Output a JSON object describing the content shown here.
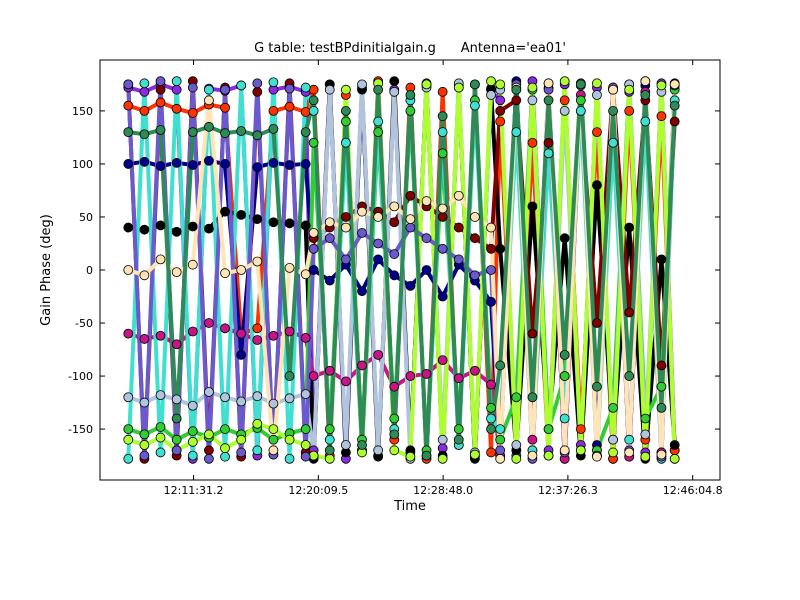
{
  "chart_data": {
    "type": "line",
    "title": "G table: testBPdinitialgain.g      Antenna='ea01'",
    "x_label": "Time",
    "y_label": "Gain Phase (deg)",
    "xlim": [
      43502.5,
      46078.2
    ],
    "ylim": [
      -198,
      198
    ],
    "xticks": [
      {
        "value": 43891.2,
        "label": "12:11:31.2"
      },
      {
        "value": 44409.5,
        "label": "12:20:09.5"
      },
      {
        "value": 44928.0,
        "label": "12:28:48.0"
      },
      {
        "value": 45446.3,
        "label": "12:37:26.3"
      },
      {
        "value": 45964.8,
        "label": "12:46:04.8"
      }
    ],
    "yticks": [
      -150,
      -100,
      -50,
      0,
      50,
      100,
      150
    ],
    "grid": false,
    "x": [
      43620,
      43687,
      43754,
      43821,
      43888,
      43955,
      44022,
      44089,
      44156,
      44223,
      44290,
      44357,
      44390,
      44457,
      44524,
      44591,
      44658,
      44725,
      44792,
      44859,
      44926,
      44993,
      45060,
      45127,
      45165,
      45232,
      45299,
      45366,
      45433,
      45500,
      45567,
      45634,
      45701,
      45768,
      45835,
      45890
    ],
    "series": [
      {
        "color": "#8a2be2",
        "values": [
          172,
          168,
          175,
          170,
          -178,
          171,
          169,
          174,
          -175,
          170,
          173,
          168,
          -170,
          175,
          -178,
          172,
          -175,
          170,
          -172,
          176,
          -168,
          174,
          -176,
          171,
          160,
          -175,
          178,
          -170,
          175,
          -165,
          172,
          -178,
          168,
          -172,
          176,
          -170
        ]
      },
      {
        "color": "#ff3300",
        "values": [
          155,
          150,
          158,
          152,
          148,
          156,
          153,
          -60,
          -55,
          150,
          154,
          149,
          170,
          -175,
          165,
          -170,
          178,
          -160,
          172,
          -178,
          168,
          -165,
          175,
          -172,
          140,
          -170,
          120,
          -175,
          160,
          -150,
          130,
          -178,
          150,
          -160,
          145,
          -170
        ]
      },
      {
        "color": "#00008b",
        "values": [
          100,
          102,
          98,
          101,
          99,
          103,
          100,
          -80,
          97,
          101,
          99,
          100,
          0,
          -10,
          5,
          -20,
          10,
          -5,
          -15,
          0,
          -25,
          5,
          -10,
          -30,
          -175,
          178,
          -170,
          172,
          -178,
          175,
          -165,
          170,
          -176,
          174,
          -172,
          176
        ]
      },
      {
        "color": "#000000",
        "values": [
          40,
          38,
          42,
          36,
          41,
          39,
          55,
          52,
          48,
          45,
          44,
          42,
          -178,
          175,
          -172,
          170,
          -176,
          178,
          -170,
          174,
          -175,
          172,
          -178,
          170,
          20,
          -170,
          60,
          -150,
          30,
          -175,
          80,
          -160,
          40,
          -178,
          10,
          -165
        ]
      },
      {
        "color": "#c71585",
        "values": [
          -60,
          -65,
          -62,
          -70,
          -58,
          -50,
          -55,
          -60,
          -66,
          -62,
          -58,
          -64,
          -100,
          -95,
          -105,
          -90,
          -80,
          -110,
          -100,
          -98,
          -85,
          -102,
          -95,
          -108,
          -175,
          170,
          -160,
          176,
          -178,
          165,
          -170,
          172,
          -176,
          168,
          -172,
          174
        ]
      },
      {
        "color": "#800000",
        "values": [
          175,
          -178,
          170,
          -175,
          178,
          -170,
          172,
          -176,
          168,
          -174,
          176,
          -172,
          30,
          40,
          50,
          60,
          55,
          45,
          70,
          60,
          50,
          40,
          30,
          20,
          150,
          160,
          -60,
          120,
          -100,
          150,
          -50,
          170,
          -40,
          160,
          -90,
          140
        ]
      },
      {
        "color": "#32cd32",
        "values": [
          -150,
          -155,
          -148,
          -160,
          -152,
          -158,
          -150,
          -155,
          -149,
          -160,
          -154,
          -150,
          120,
          -150,
          140,
          -160,
          130,
          -140,
          150,
          -170,
          110,
          -150,
          160,
          -130,
          -160,
          -120,
          170,
          -150,
          -100,
          160,
          -170,
          -130,
          175,
          -140,
          -110,
          170
        ]
      },
      {
        "color": "#b0c4de",
        "values": [
          -120,
          -125,
          -118,
          -122,
          -128,
          -115,
          -120,
          -124,
          -119,
          -126,
          -121,
          -117,
          -175,
          170,
          -165,
          175,
          -170,
          168,
          -178,
          172,
          -160,
          176,
          -172,
          165,
          170,
          -165,
          160,
          -175,
          150,
          -170,
          165,
          -160,
          175,
          -155,
          168,
          -178
        ]
      },
      {
        "color": "#40e0d0",
        "values": [
          -178,
          176,
          -172,
          178,
          -175,
          170,
          -176,
          174,
          -170,
          177,
          -178,
          172,
          150,
          -160,
          120,
          -170,
          140,
          -150,
          160,
          -175,
          130,
          -165,
          155,
          -140,
          -150,
          130,
          -170,
          110,
          -140,
          150,
          -175,
          120,
          -160,
          140,
          -178,
          160
        ]
      },
      {
        "color": "#adff2f",
        "values": [
          -160,
          -165,
          -158,
          -170,
          -162,
          -155,
          -168,
          -160,
          -145,
          -150,
          -160,
          -165,
          -175,
          -178,
          170,
          -172,
          176,
          -170,
          -176,
          175,
          -178,
          172,
          -174,
          178,
          175,
          -178,
          172,
          -175,
          178,
          -170,
          176,
          -172,
          170,
          -176,
          174,
          -178
        ]
      },
      {
        "color": "#6a5acd",
        "values": [
          175,
          -175,
          178,
          -170,
          172,
          -178,
          170,
          -172,
          176,
          -174,
          171,
          -176,
          20,
          30,
          10,
          35,
          25,
          15,
          40,
          30,
          20,
          10,
          -5,
          0,
          -170,
          175,
          -178,
          170,
          -172,
          176,
          -175,
          172,
          -170,
          178,
          -176,
          174
        ]
      },
      {
        "color": "#ffe4b5",
        "values": [
          0,
          -5,
          10,
          -2,
          5,
          160,
          -3,
          0,
          8,
          -170,
          2,
          -4,
          35,
          45,
          40,
          55,
          50,
          60,
          48,
          65,
          58,
          70,
          50,
          40,
          -178,
          172,
          -175,
          176,
          -170,
          174,
          -176,
          170,
          -172,
          178,
          -174,
          175
        ]
      },
      {
        "color": "#2e8b57",
        "values": [
          130,
          128,
          132,
          -140,
          130,
          135,
          129,
          131,
          127,
          133,
          -100,
          130,
          160,
          -170,
          150,
          -165,
          170,
          -155,
          165,
          -175,
          145,
          -160,
          175,
          -150,
          -90,
          170,
          -120,
          160,
          -80,
          175,
          -110,
          150,
          -100,
          165,
          -130,
          155
        ]
      }
    ]
  }
}
